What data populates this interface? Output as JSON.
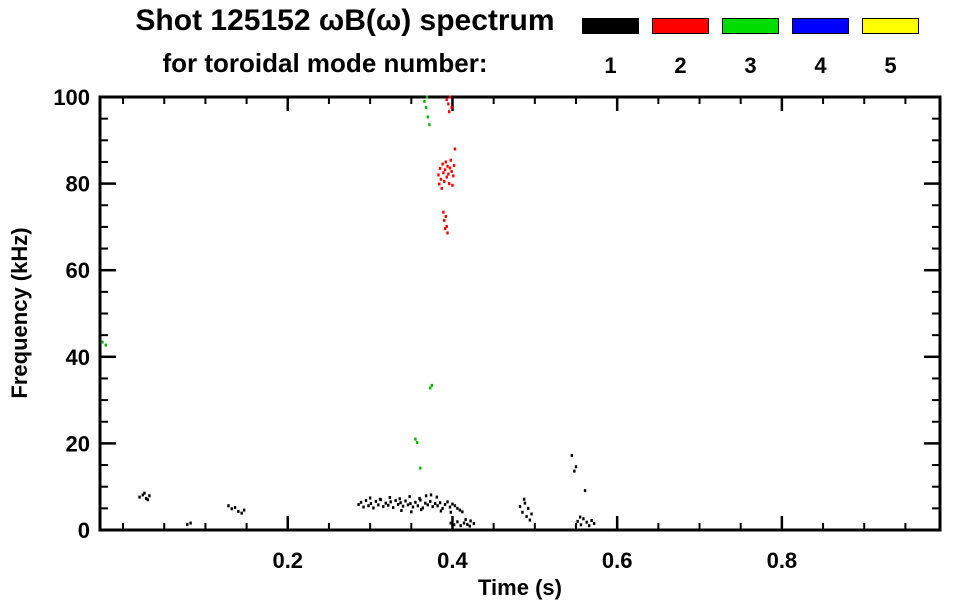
{
  "header": {
    "title_line1": "Shot 125152 ωB(ω) spectrum",
    "title_line2": "for toroidal mode number:"
  },
  "legend": {
    "items": [
      {
        "label": "1",
        "color": "#000000"
      },
      {
        "label": "2",
        "color": "#ff0000"
      },
      {
        "label": "3",
        "color": "#00dd00"
      },
      {
        "label": "4",
        "color": "#0000ff"
      },
      {
        "label": "5",
        "color": "#ffff00"
      }
    ]
  },
  "chart_data": {
    "type": "scatter",
    "title": "Shot 125152 ωB(ω) spectrum for toroidal mode number:",
    "xlabel": "Time (s)",
    "ylabel": "Frequency (kHz)",
    "xlim": [
      -0.03,
      1.0
    ],
    "ylim": [
      0,
      100
    ],
    "xticks": [
      0.2,
      0.4,
      0.6,
      0.8
    ],
    "yticks": [
      0,
      20,
      40,
      60,
      80,
      100
    ],
    "x_minor_step": 0.05,
    "y_minor_step": 5,
    "grid": false,
    "legend_position": "top-right",
    "series": [
      {
        "name": "n=1",
        "color": "#000000",
        "points": [
          [
            0.02,
            7.6
          ],
          [
            0.024,
            8.1
          ],
          [
            0.028,
            7.3
          ],
          [
            0.032,
            7.9
          ],
          [
            0.026,
            8.5
          ],
          [
            0.03,
            7.0
          ],
          [
            0.078,
            1.3
          ],
          [
            0.082,
            1.6
          ],
          [
            0.128,
            5.6
          ],
          [
            0.132,
            4.9
          ],
          [
            0.136,
            5.2
          ],
          [
            0.14,
            4.3
          ],
          [
            0.144,
            3.9
          ],
          [
            0.147,
            4.6
          ],
          [
            0.286,
            5.9
          ],
          [
            0.289,
            6.4
          ],
          [
            0.292,
            5.3
          ],
          [
            0.295,
            6.8
          ],
          [
            0.298,
            5.6
          ],
          [
            0.301,
            6.1
          ],
          [
            0.304,
            5.1
          ],
          [
            0.307,
            6.6
          ],
          [
            0.31,
            5.8
          ],
          [
            0.313,
            7.0
          ],
          [
            0.316,
            5.4
          ],
          [
            0.319,
            6.2
          ],
          [
            0.322,
            5.7
          ],
          [
            0.325,
            6.5
          ],
          [
            0.328,
            5.2
          ],
          [
            0.331,
            6.8
          ],
          [
            0.334,
            5.9
          ],
          [
            0.337,
            6.3
          ],
          [
            0.34,
            5.5
          ],
          [
            0.343,
            6.7
          ],
          [
            0.346,
            5.8
          ],
          [
            0.349,
            6.1
          ],
          [
            0.352,
            5.3
          ],
          [
            0.355,
            6.4
          ],
          [
            0.358,
            5.6
          ],
          [
            0.361,
            6.9
          ],
          [
            0.364,
            5.1
          ],
          [
            0.367,
            6.2
          ],
          [
            0.37,
            5.8
          ],
          [
            0.373,
            6.6
          ],
          [
            0.376,
            5.4
          ],
          [
            0.379,
            6.1
          ],
          [
            0.382,
            5.6
          ],
          [
            0.385,
            6.3
          ],
          [
            0.388,
            5.0
          ],
          [
            0.391,
            5.9
          ],
          [
            0.394,
            6.5
          ],
          [
            0.397,
            5.3
          ],
          [
            0.4,
            6.0
          ],
          [
            0.403,
            5.6
          ],
          [
            0.406,
            5.0
          ],
          [
            0.409,
            4.6
          ],
          [
            0.412,
            4.2
          ],
          [
            0.3,
            7.4
          ],
          [
            0.312,
            7.1
          ],
          [
            0.324,
            7.5
          ],
          [
            0.336,
            7.2
          ],
          [
            0.348,
            7.7
          ],
          [
            0.36,
            7.3
          ],
          [
            0.368,
            7.9
          ],
          [
            0.374,
            8.1
          ],
          [
            0.381,
            7.6
          ],
          [
            0.338,
            4.5
          ],
          [
            0.35,
            4.2
          ],
          [
            0.362,
            4.7
          ],
          [
            0.386,
            4.4
          ],
          [
            0.398,
            4.1
          ],
          [
            0.398,
            1.6
          ],
          [
            0.402,
            1.2
          ],
          [
            0.406,
            1.9
          ],
          [
            0.41,
            1.0
          ],
          [
            0.414,
            1.6
          ],
          [
            0.418,
            1.3
          ],
          [
            0.422,
            2.1
          ],
          [
            0.426,
            1.5
          ],
          [
            0.416,
            2.4
          ],
          [
            0.421,
            0.9
          ],
          [
            0.482,
            5.4
          ],
          [
            0.485,
            4.1
          ],
          [
            0.488,
            6.2
          ],
          [
            0.49,
            3.1
          ],
          [
            0.492,
            5.0
          ],
          [
            0.494,
            2.3
          ],
          [
            0.487,
            7.1
          ],
          [
            0.496,
            3.7
          ],
          [
            0.545,
            17.2
          ],
          [
            0.548,
            13.6
          ],
          [
            0.55,
            14.6
          ],
          [
            0.552,
            2.0
          ],
          [
            0.555,
            3.0
          ],
          [
            0.556,
            1.2
          ],
          [
            0.559,
            2.6
          ],
          [
            0.561,
            9.1
          ],
          [
            0.563,
            1.8
          ],
          [
            0.566,
            1.0
          ],
          [
            0.569,
            2.2
          ],
          [
            0.572,
            1.5
          ]
        ]
      },
      {
        "name": "n=2",
        "color": "#ff0000",
        "points": [
          [
            0.383,
            82.0
          ],
          [
            0.385,
            83.5
          ],
          [
            0.386,
            81.0
          ],
          [
            0.388,
            84.5
          ],
          [
            0.389,
            82.5
          ],
          [
            0.39,
            80.5
          ],
          [
            0.391,
            83.2
          ],
          [
            0.392,
            85.0
          ],
          [
            0.393,
            81.5
          ],
          [
            0.394,
            84.0
          ],
          [
            0.395,
            82.2
          ],
          [
            0.396,
            80.0
          ],
          [
            0.397,
            83.6
          ],
          [
            0.398,
            85.4
          ],
          [
            0.399,
            82.8
          ],
          [
            0.4,
            79.6
          ],
          [
            0.401,
            81.8
          ],
          [
            0.402,
            84.2
          ],
          [
            0.384,
            79.9
          ],
          [
            0.387,
            78.9
          ],
          [
            0.389,
            73.4
          ],
          [
            0.39,
            71.5
          ],
          [
            0.391,
            69.6
          ],
          [
            0.392,
            72.4
          ],
          [
            0.393,
            70.1
          ],
          [
            0.394,
            68.6
          ],
          [
            0.393,
            99.4
          ],
          [
            0.395,
            98.4
          ],
          [
            0.397,
            100.0
          ],
          [
            0.399,
            97.6
          ],
          [
            0.396,
            96.6
          ],
          [
            0.403,
            88.0
          ]
        ]
      },
      {
        "name": "n=3",
        "color": "#00bb00",
        "points": [
          [
            -0.025,
            43.4
          ],
          [
            -0.021,
            42.7
          ],
          [
            0.366,
            99.0
          ],
          [
            0.368,
            97.6
          ],
          [
            0.37,
            95.4
          ],
          [
            0.372,
            93.6
          ],
          [
            0.369,
            100.0
          ],
          [
            0.373,
            32.8
          ],
          [
            0.375,
            33.4
          ],
          [
            0.355,
            21.0
          ],
          [
            0.357,
            20.2
          ],
          [
            0.361,
            14.3
          ]
        ]
      },
      {
        "name": "n=4",
        "color": "#0000ff",
        "points": []
      },
      {
        "name": "n=5",
        "color": "#ffff00",
        "points": []
      }
    ]
  }
}
